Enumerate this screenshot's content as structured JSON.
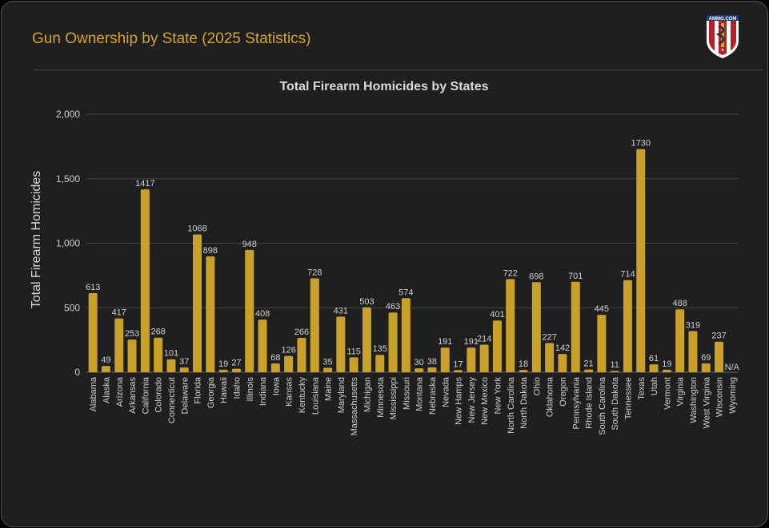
{
  "header": {
    "title": "Gun Ownership by State (2025 Statistics)",
    "logo_text": "AMMO.COM"
  },
  "colors": {
    "bar": "#c9a02a",
    "title": "#d4a52a",
    "background": "#1f1f1f",
    "grid": "#444444"
  },
  "chart_data": {
    "type": "bar",
    "title": "Total Firearm Homicides by States",
    "xlabel": "",
    "ylabel": "Total Firearm Homicides",
    "ylim": [
      0,
      2000
    ],
    "yticks": [
      0,
      500,
      1000,
      1500,
      2000
    ],
    "ytick_labels": [
      "0",
      "500",
      "1,000",
      "1,500",
      "2,000"
    ],
    "grid": true,
    "categories": [
      "Alabama",
      "Alaska",
      "Arizona",
      "Arkansas",
      "California",
      "Colorado",
      "Connecticut",
      "Delaware",
      "Florida",
      "Georgia",
      "Hawaii",
      "Idaho",
      "Illinois",
      "Indiana",
      "Iowa",
      "Kansas",
      "Kentucky",
      "Louisiana",
      "Maine",
      "Maryland",
      "Massachusetts",
      "Michigan",
      "Minnesota",
      "Mississippi",
      "Missouri",
      "Montana",
      "Nebraska",
      "Nevada",
      "New Hamps",
      "New Jersey",
      "New Mexico",
      "New York",
      "North Carolina",
      "North Dakota",
      "Ohio",
      "Oklahoma",
      "Oregon",
      "Pennsylvania",
      "Rhode Island",
      "South Carolina",
      "South Dakota",
      "Tennessee",
      "Texas",
      "Utah",
      "Vermont",
      "Virginia",
      "Washington",
      "West Virginia",
      "Wisconsin",
      "Wyoming"
    ],
    "values": [
      613,
      49,
      417,
      253,
      1417,
      268,
      101,
      37,
      1068,
      898,
      19,
      27,
      948,
      408,
      68,
      126,
      266,
      728,
      35,
      431,
      115,
      503,
      135,
      463,
      574,
      30,
      38,
      191,
      17,
      191,
      214,
      401,
      722,
      18,
      698,
      227,
      142,
      701,
      21,
      445,
      11,
      714,
      1730,
      61,
      19,
      488,
      319,
      69,
      237,
      null
    ],
    "data_labels": [
      "613",
      "49",
      "417",
      "253",
      "1417",
      "268",
      "101",
      "37",
      "1068",
      "898",
      "19",
      "27",
      "948",
      "408",
      "68",
      "126",
      "266",
      "728",
      "35",
      "431",
      "115",
      "503",
      "135",
      "463",
      "574",
      "30",
      "38",
      "191",
      "17",
      "191",
      "214",
      "401",
      "722",
      "18",
      "698",
      "227",
      "142",
      "701",
      "21",
      "445",
      "11",
      "714",
      "1730",
      "61",
      "19",
      "488",
      "319",
      "69",
      "237",
      "N/A"
    ]
  }
}
